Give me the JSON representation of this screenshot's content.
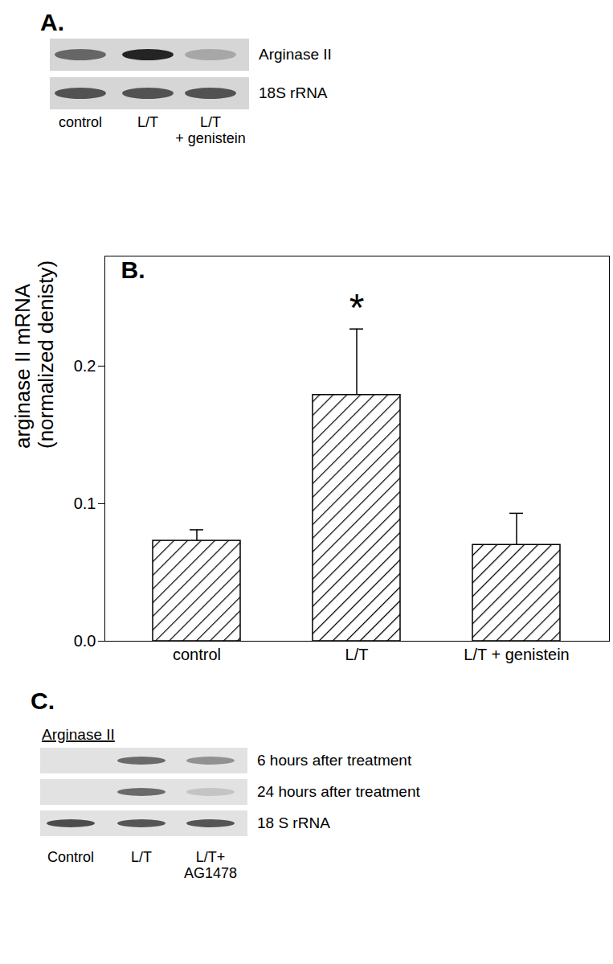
{
  "chart_data": {
    "type": "bar",
    "title": "B.",
    "ylabel": "arginase II mRNA\n(normalized denisty)",
    "categories": [
      "control",
      "L/T",
      "L/T + genistein"
    ],
    "values": [
      0.073,
      0.179,
      0.07
    ],
    "errors": [
      0.008,
      0.048,
      0.023
    ],
    "color": "#000000",
    "ylim": [
      0,
      0.28
    ],
    "yticks": [
      {
        "value": 0,
        "label": "0.0"
      },
      {
        "value": 0.1,
        "label": "0.1"
      },
      {
        "value": 0.2,
        "label": "0.2"
      }
    ],
    "annotations": [
      {
        "text": "*",
        "category": "L/T"
      }
    ],
    "grid": false
  },
  "panels": [
    {
      "title": "A.",
      "lanes": [
        "control",
        "L/T",
        "L/T\n+ genistein"
      ],
      "rows": [
        {
          "label": "Arginase II",
          "intensity": [
            0.6,
            0.95,
            0.25
          ]
        },
        {
          "label": "18S rRNA",
          "intensity": [
            0.7,
            0.7,
            0.7
          ]
        }
      ]
    },
    {
      "title": "C.",
      "subtitle": "Arginase II",
      "lanes": [
        "Control",
        "L/T",
        "L/T+\nAG1478"
      ],
      "rows": [
        {
          "label": "6 hours after treatment",
          "intensity": [
            0,
            0.6,
            0.4
          ]
        },
        {
          "label": "24 hours after treatment",
          "intensity": [
            0,
            0.6,
            0.15
          ]
        },
        {
          "label": "18 S rRNA",
          "intensity": [
            0.75,
            0.7,
            0.7
          ]
        }
      ]
    }
  ]
}
